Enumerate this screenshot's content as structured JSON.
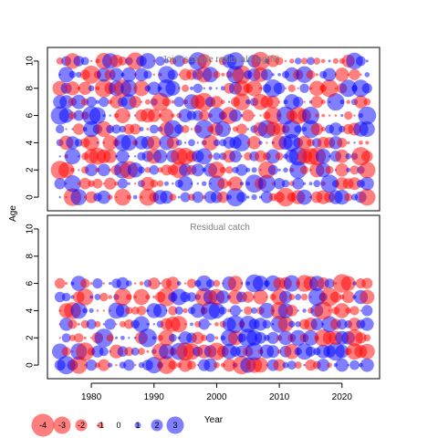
{
  "chart_data": {
    "type": "scatter",
    "xlabel": "Year",
    "ylabel": "Age",
    "xlim": [
      1973,
      2026
    ],
    "x_ticks": [
      1980,
      1990,
      2000,
      2010,
      2020
    ],
    "colors": {
      "positive": "#0000FF",
      "negative": "#FF0000"
    },
    "panels": [
      {
        "title": "Joint sample residuals log(N)",
        "ylim": [
          -1,
          11
        ],
        "y_ticks": [
          0,
          2,
          4,
          6,
          8,
          10
        ],
        "ages": [
          0,
          1,
          2,
          3,
          4,
          5,
          6,
          7,
          8,
          9,
          10
        ],
        "years": [
          1975,
          1976,
          1977,
          1978,
          1979,
          1980,
          1981,
          1982,
          1983,
          1984,
          1985,
          1986,
          1987,
          1988,
          1989,
          1990,
          1991,
          1992,
          1993,
          1994,
          1995,
          1996,
          1997,
          1998,
          1999,
          2000,
          2001,
          2002,
          2003,
          2004,
          2005,
          2006,
          2007,
          2008,
          2009,
          2010,
          2011,
          2012,
          2013,
          2014,
          2015,
          2016,
          2017,
          2018,
          2019,
          2020,
          2021,
          2022,
          2023,
          2024
        ]
      },
      {
        "title": "Residual catch",
        "ylim": [
          -1,
          11
        ],
        "y_ticks": [
          0,
          2,
          4,
          6,
          8,
          10
        ],
        "ages": [
          0,
          1,
          2,
          3,
          4,
          5,
          6
        ],
        "years": [
          1975,
          1976,
          1977,
          1978,
          1979,
          1980,
          1981,
          1982,
          1983,
          1984,
          1985,
          1986,
          1987,
          1988,
          1989,
          1990,
          1991,
          1992,
          1993,
          1994,
          1995,
          1996,
          1997,
          1998,
          1999,
          2000,
          2001,
          2002,
          2003,
          2004,
          2005,
          2006,
          2007,
          2008,
          2009,
          2010,
          2011,
          2012,
          2013,
          2014,
          2015,
          2016,
          2017,
          2018,
          2019,
          2020,
          2021,
          2022,
          2023,
          2024
        ]
      }
    ],
    "legend": [
      {
        "label": "-4",
        "value": -4
      },
      {
        "label": "-3",
        "value": -3
      },
      {
        "label": "-2",
        "value": -2
      },
      {
        "label": "-1",
        "value": -1
      },
      {
        "label": "0",
        "value": 0
      },
      {
        "label": "1",
        "value": 1
      },
      {
        "label": "2",
        "value": 2
      },
      {
        "label": "3",
        "value": 3
      }
    ]
  }
}
